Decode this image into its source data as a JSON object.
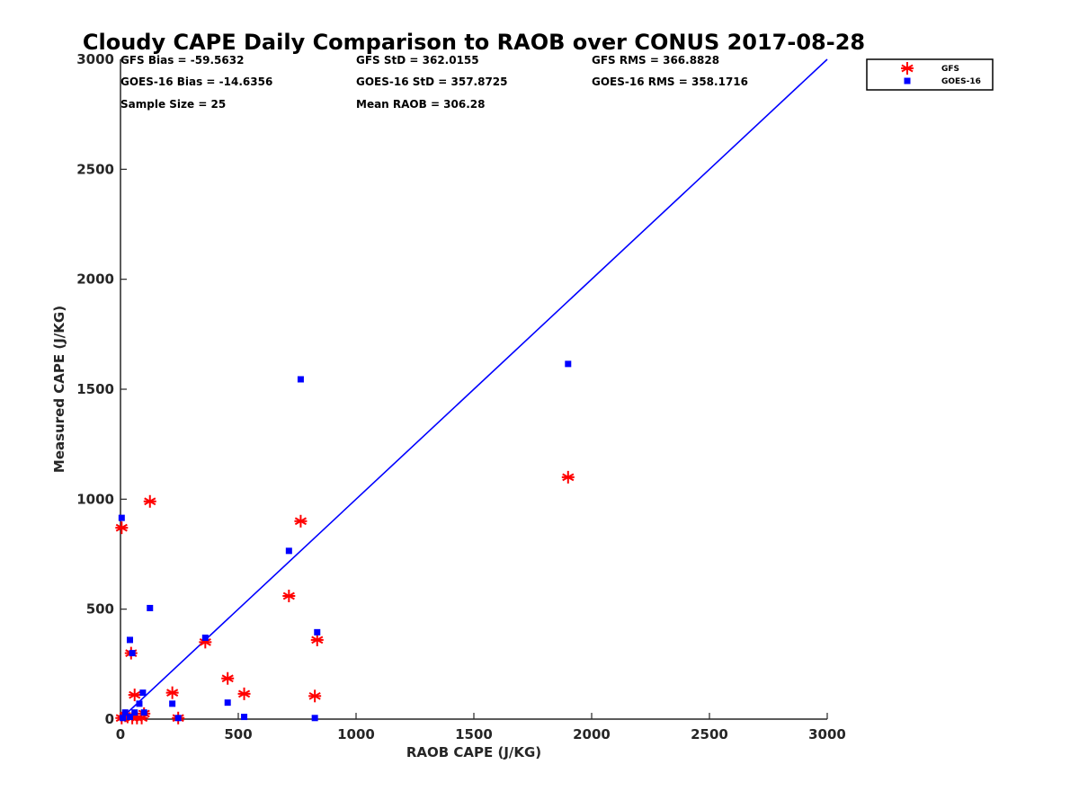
{
  "chart_data": {
    "type": "scatter",
    "title": "Cloudy CAPE Daily Comparison to RAOB over CONUS 2017-08-28",
    "xlabel": "RAOB CAPE (J/KG)",
    "ylabel": "Measured CAPE (J/KG)",
    "xlim": [
      0,
      3000
    ],
    "ylim": [
      0,
      3000
    ],
    "xticks": [
      0,
      500,
      1000,
      1500,
      2000,
      2500,
      3000
    ],
    "yticks": [
      0,
      500,
      1000,
      1500,
      2000,
      2500,
      3000
    ],
    "xtick_labels": [
      "0",
      "500",
      "1000",
      "1500",
      "2000",
      "2500",
      "3000"
    ],
    "ytick_labels": [
      "0",
      "500",
      "1000",
      "1500",
      "2000",
      "2500",
      "3000"
    ],
    "grid": false,
    "legend_position": "top-right",
    "stats": [
      "GFS Bias = -59.5632",
      "GFS StD = 362.0155",
      "GFS RMS = 366.8828",
      "GOES-16 Bias = -14.6356",
      "GOES-16 StD = 357.8725",
      "GOES-16 RMS = 358.1716",
      "Sample Size = 25",
      "Mean RAOB = 306.28"
    ],
    "series": [
      {
        "name": "GFS",
        "marker": "asterisk",
        "color": "#ff0000",
        "points": [
          [
            5,
            870
          ],
          [
            125,
            990
          ],
          [
            45,
            300
          ],
          [
            60,
            110
          ],
          [
            5,
            5
          ],
          [
            20,
            15
          ],
          [
            30,
            10
          ],
          [
            50,
            5
          ],
          [
            70,
            5
          ],
          [
            90,
            5
          ],
          [
            100,
            25
          ],
          [
            220,
            120
          ],
          [
            245,
            5
          ],
          [
            360,
            350
          ],
          [
            455,
            185
          ],
          [
            525,
            115
          ],
          [
            715,
            560
          ],
          [
            765,
            900
          ],
          [
            825,
            105
          ],
          [
            835,
            360
          ],
          [
            1900,
            1100
          ]
        ]
      },
      {
        "name": "GOES-16",
        "marker": "square",
        "color": "#0000ff",
        "points": [
          [
            5,
            915
          ],
          [
            125,
            505
          ],
          [
            40,
            360
          ],
          [
            50,
            300
          ],
          [
            20,
            30
          ],
          [
            10,
            5
          ],
          [
            40,
            10
          ],
          [
            60,
            30
          ],
          [
            80,
            70
          ],
          [
            95,
            120
          ],
          [
            100,
            30
          ],
          [
            220,
            70
          ],
          [
            245,
            5
          ],
          [
            360,
            370
          ],
          [
            455,
            75
          ],
          [
            525,
            10
          ],
          [
            715,
            765
          ],
          [
            765,
            1545
          ],
          [
            825,
            5
          ],
          [
            835,
            395
          ],
          [
            1900,
            1615
          ]
        ]
      }
    ],
    "reference_line": {
      "x": [
        0,
        3000
      ],
      "y": [
        0,
        3000
      ],
      "color": "#0000ff"
    }
  }
}
